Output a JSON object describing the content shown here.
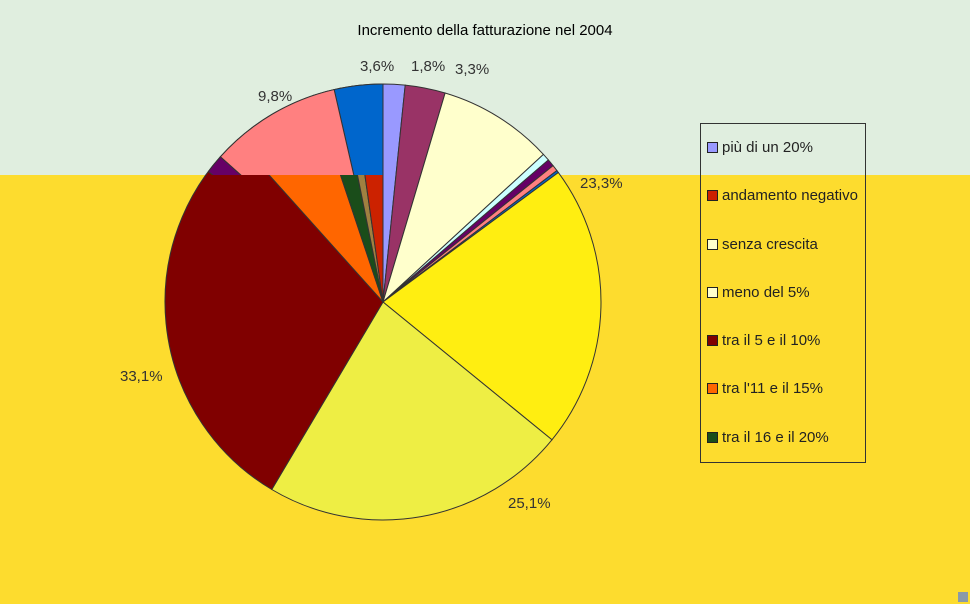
{
  "chart_data": {
    "type": "pie",
    "title": "Incremento della fatturazione nel 2004",
    "slices": [
      {
        "label": "più di un 20%",
        "value": 1.8,
        "display": "1,8%",
        "color": "#9999ff"
      },
      {
        "label": "",
        "value": 3.3,
        "display": "3,3%",
        "color": "#993366"
      },
      {
        "label": "",
        "value": 9.5,
        "display": "",
        "color": "#ffffcc"
      },
      {
        "label": "",
        "value": 0.6,
        "display": "",
        "color": "#ccffff"
      },
      {
        "label": "",
        "value": 0.6,
        "display": "",
        "color": "#660066"
      },
      {
        "label": "",
        "value": 0.5,
        "display": "",
        "color": "#ff8080"
      },
      {
        "label": "",
        "value": 0.2,
        "display": "",
        "color": "#0066cc"
      },
      {
        "label": "",
        "value": 23.3,
        "display": "23,3%",
        "color": "#ffee11"
      },
      {
        "label": "",
        "value": 25.1,
        "display": "25,1%",
        "color": "#eeee44"
      },
      {
        "label": "tra il 5 e il 10%",
        "value": 33.1,
        "display": "33,1%",
        "color": "#800000"
      },
      {
        "label": "tra l'11 e il 15%",
        "value": 7.2,
        "display": "",
        "color": "#ff6600"
      },
      {
        "label": "tra il 16 e il 20%",
        "value": 2.2,
        "display": "",
        "color": "#1a4d1a"
      },
      {
        "label": "",
        "value": 1.0,
        "display": "",
        "color": "#a08040"
      },
      {
        "label": "andamento negativo",
        "value": 2.5,
        "display": "",
        "color": "#cc2200"
      }
    ],
    "overlay_slices": [
      {
        "value": 1.4,
        "display": "",
        "color": "#660066"
      },
      {
        "value": 9.8,
        "display": "9,8%",
        "color": "#ff8080"
      },
      {
        "value": 3.6,
        "display": "3,6%",
        "color": "#0066cc"
      }
    ],
    "legend": [
      {
        "label": "più di un 20%",
        "color": "#9999ff"
      },
      {
        "label": "andamento negativo",
        "color": "#cc2200"
      },
      {
        "label": "senza crescita",
        "color": "#ffffcc"
      },
      {
        "label": "meno del 5%",
        "color": "#ffffcc"
      },
      {
        "label": "tra il 5 e il 10%",
        "color": "#800000"
      },
      {
        "label": "tra l'11 e il 15%",
        "color": "#ff6600"
      },
      {
        "label": "tra il 16 e il 20%",
        "color": "#1a4d1a"
      }
    ]
  }
}
